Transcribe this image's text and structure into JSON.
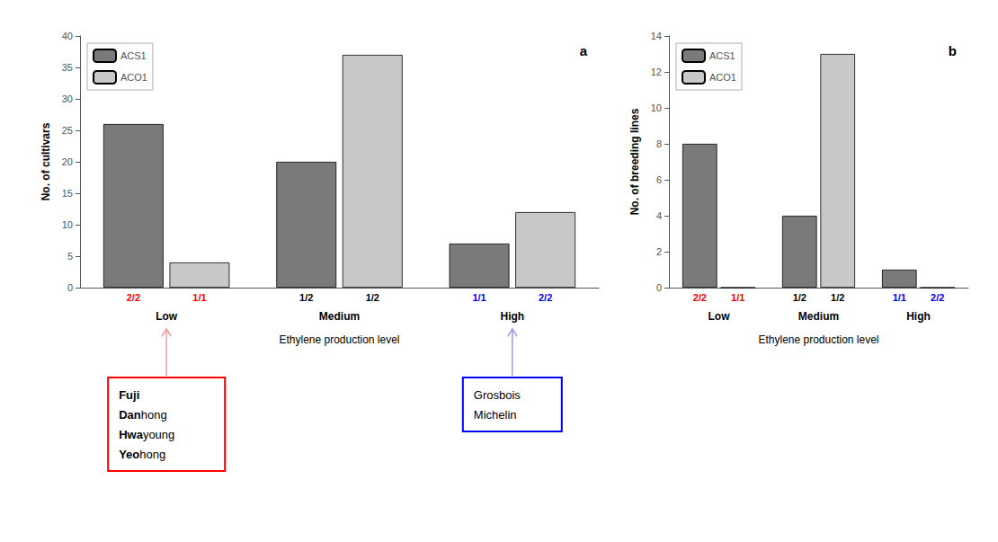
{
  "chart_data": [
    {
      "type": "bar",
      "title": "a",
      "ylabel": "No. of cultivars",
      "xlabel": "Ethylene production level",
      "categories": [
        "Low",
        "Medium",
        "High"
      ],
      "series": [
        {
          "name": "ACS1",
          "color": "#7a7a7a",
          "values": [
            26,
            20,
            7
          ],
          "genotypes": [
            "2/2",
            "1/2",
            "1/1"
          ],
          "genotype_colors": [
            "red",
            "black",
            "blue"
          ]
        },
        {
          "name": "ACO1",
          "color": "#c8c8c8",
          "values": [
            4,
            37,
            12
          ],
          "genotypes": [
            "1/1",
            "1/2",
            "2/2"
          ],
          "genotype_colors": [
            "red",
            "black",
            "blue"
          ]
        }
      ],
      "ylim": [
        0,
        40
      ],
      "yticks": [
        0,
        5,
        10,
        15,
        20,
        25,
        30,
        35,
        40
      ],
      "grid": false,
      "legend": "upper left",
      "annotations": [
        {
          "group": "Low",
          "color": "red",
          "arrow_color": "#ff9999",
          "lines": [
            {
              "bold": "Fuji"
            },
            {
              "bold": "Dan",
              "normal": "hong"
            },
            {
              "bold": "Hwa",
              "normal": "young"
            },
            {
              "bold": "Yeo",
              "normal": "hong"
            }
          ]
        },
        {
          "group": "High",
          "color": "blue",
          "arrow_color": "#9999ff",
          "lines": [
            {
              "normal": "Grosbois"
            },
            {
              "normal": "Michelin"
            }
          ]
        }
      ]
    },
    {
      "type": "bar",
      "title": "b",
      "ylabel": "No. of breeding lines",
      "xlabel": "Ethylene production level",
      "categories": [
        "Low",
        "Medium",
        "High"
      ],
      "series": [
        {
          "name": "ACS1",
          "color": "#7a7a7a",
          "values": [
            8,
            4,
            1
          ],
          "genotypes": [
            "2/2",
            "1/2",
            "1/1"
          ],
          "genotype_colors": [
            "red",
            "black",
            "blue"
          ]
        },
        {
          "name": "ACO1",
          "color": "#c8c8c8",
          "values": [
            0,
            13,
            0
          ],
          "genotypes": [
            "1/1",
            "1/2",
            "2/2"
          ],
          "genotype_colors": [
            "red",
            "black",
            "blue"
          ]
        }
      ],
      "ylim": [
        0,
        14
      ],
      "yticks": [
        0,
        2,
        4,
        6,
        8,
        10,
        12,
        14
      ],
      "grid": false,
      "legend": "upper left"
    }
  ]
}
